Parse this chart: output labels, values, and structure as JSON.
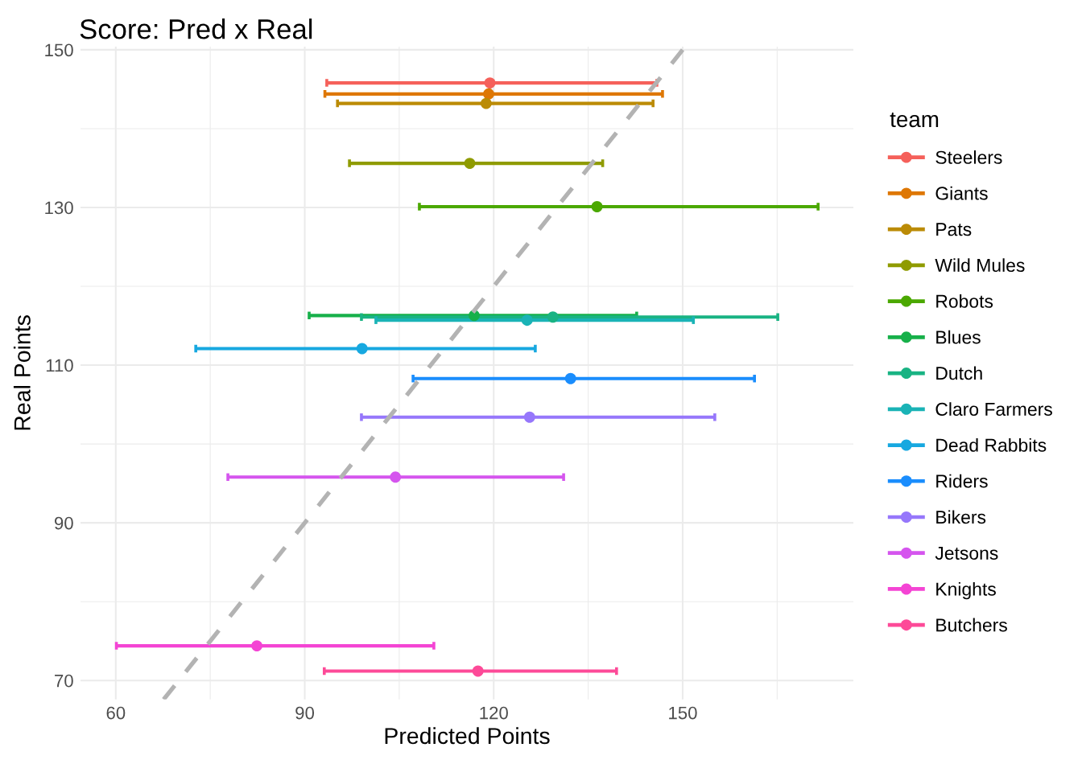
{
  "chart_data": {
    "type": "scatter",
    "title": "Score: Pred x Real",
    "xlabel": "Predicted Points",
    "ylabel": "Real Points",
    "legend_title": "team",
    "legend": "right",
    "grid": true,
    "marker": "circle",
    "xlim": [
      54.4,
      177.1
    ],
    "ylim": [
      67.6,
      150.4
    ],
    "xticks": [
      60,
      {
        "value": 75,
        "label": null
      },
      90,
      {
        "value": 105,
        "label": null
      },
      120,
      {
        "value": 135,
        "label": null
      },
      150,
      {
        "value": 165,
        "label": null
      }
    ],
    "yticks": [
      70,
      {
        "value": 80,
        "label": null
      },
      90,
      {
        "value": 100,
        "label": null
      },
      110,
      {
        "value": 120,
        "label": null
      },
      130,
      {
        "value": 140,
        "label": null
      },
      150
    ],
    "series": [
      {
        "name": "Steelers",
        "color": "#f5605a",
        "x": [
          119.4
        ],
        "values": [
          145.8
        ],
        "xerrors": [
          [
            93.5,
            145.9
          ]
        ]
      },
      {
        "name": "Giants",
        "color": "#de7704",
        "x": [
          119.2
        ],
        "values": [
          144.4
        ],
        "xerrors": [
          [
            93.2,
            146.8
          ]
        ]
      },
      {
        "name": "Pats",
        "color": "#bb8b06",
        "x": [
          118.8
        ],
        "values": [
          143.2
        ],
        "xerrors": [
          [
            95.2,
            145.3
          ]
        ]
      },
      {
        "name": "Wild Mules",
        "color": "#8f9b00",
        "x": [
          116.2
        ],
        "values": [
          135.6
        ],
        "xerrors": [
          [
            97.1,
            137.3
          ]
        ]
      },
      {
        "name": "Robots",
        "color": "#4ba800",
        "x": [
          136.4
        ],
        "values": [
          130.1
        ],
        "xerrors": [
          [
            108.2,
            171.5
          ]
        ]
      },
      {
        "name": "Blues",
        "color": "#17b04a",
        "x": [
          116.9
        ],
        "values": [
          116.3
        ],
        "xerrors": [
          [
            90.7,
            142.7
          ]
        ]
      },
      {
        "name": "Dutch",
        "color": "#19b383",
        "x": [
          129.4
        ],
        "values": [
          116.1
        ],
        "xerrors": [
          [
            99.0,
            165.1
          ]
        ]
      },
      {
        "name": "Claro Farmers",
        "color": "#1ab3b6",
        "x": [
          125.3
        ],
        "values": [
          115.7
        ],
        "xerrors": [
          [
            101.3,
            151.7
          ]
        ]
      },
      {
        "name": "Dead Rabbits",
        "color": "#17a8e0",
        "x": [
          99.1
        ],
        "values": [
          112.1
        ],
        "xerrors": [
          [
            72.7,
            126.6
          ]
        ]
      },
      {
        "name": "Riders",
        "color": "#1a8dfd",
        "x": [
          132.2
        ],
        "values": [
          108.3
        ],
        "xerrors": [
          [
            107.2,
            161.4
          ]
        ]
      },
      {
        "name": "Bikers",
        "color": "#9677fb",
        "x": [
          125.7
        ],
        "values": [
          103.4
        ],
        "xerrors": [
          [
            99.0,
            155.1
          ]
        ]
      },
      {
        "name": "Jetsons",
        "color": "#d555ee",
        "x": [
          104.4
        ],
        "values": [
          95.8
        ],
        "xerrors": [
          [
            77.8,
            131.1
          ]
        ]
      },
      {
        "name": "Knights",
        "color": "#f444d4",
        "x": [
          82.4
        ],
        "values": [
          74.4
        ],
        "xerrors": [
          [
            60.1,
            110.5
          ]
        ]
      },
      {
        "name": "Butchers",
        "color": "#fd4a98",
        "x": [
          117.5
        ],
        "values": [
          71.2
        ],
        "xerrors": [
          [
            93.1,
            139.5
          ]
        ]
      },
      {
        "type": "line",
        "color": "#b3b3b3",
        "line_style": "dashed",
        "marker": "none",
        "x": [
          67.6,
          150.0
        ],
        "values": [
          67.6,
          150.0
        ]
      }
    ]
  }
}
